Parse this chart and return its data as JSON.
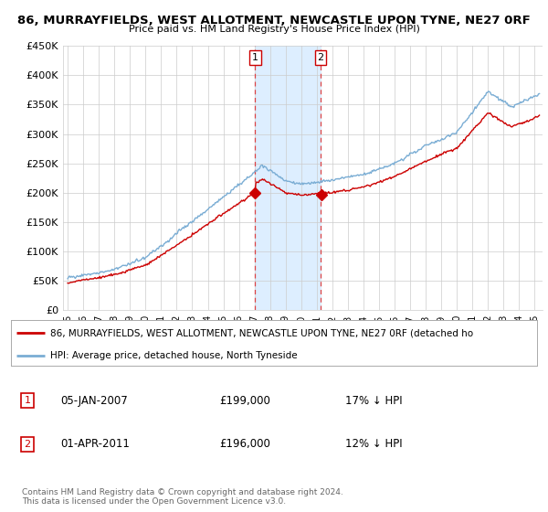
{
  "title": "86, MURRAYFIELDS, WEST ALLOTMENT, NEWCASTLE UPON TYNE, NE27 0RF",
  "subtitle": "Price paid vs. HM Land Registry's House Price Index (HPI)",
  "sale1_date": "05-JAN-2007",
  "sale1_price": 199000,
  "sale1_label": "17% ↓ HPI",
  "sale2_date": "01-APR-2011",
  "sale2_price": 196000,
  "sale2_label": "12% ↓ HPI",
  "legend_line1": "86, MURRAYFIELDS, WEST ALLOTMENT, NEWCASTLE UPON TYNE, NE27 0RF (detached ho",
  "legend_line2": "HPI: Average price, detached house, North Tyneside",
  "footnote": "Contains HM Land Registry data © Crown copyright and database right 2024.\nThis data is licensed under the Open Government Licence v3.0.",
  "ylim": [
    0,
    450000
  ],
  "xlim_start": 1994.7,
  "xlim_end": 2025.5,
  "red_color": "#cc0000",
  "blue_color": "#7aadd4",
  "shade_color": "#ddeeff",
  "background_color": "#ffffff",
  "grid_color": "#cccccc",
  "sale1_year": 2007.04,
  "sale2_year": 2011.25
}
